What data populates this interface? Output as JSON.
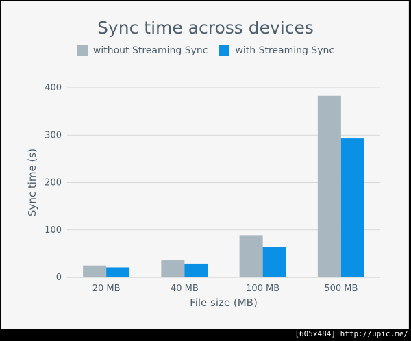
{
  "chart_data": {
    "type": "bar",
    "title": "Sync time across devices",
    "xlabel": "File size (MB)",
    "ylabel": "Sync time (s)",
    "categories": [
      "20 MB",
      "40 MB",
      "100 MB",
      "500 MB"
    ],
    "ylim": [
      0,
      400
    ],
    "yticks": [
      0,
      100,
      200,
      300,
      400
    ],
    "grid": true,
    "legend_position": "top",
    "series": [
      {
        "name": "without Streaming Sync",
        "color": "#a9b7c1",
        "values": [
          25,
          36,
          89,
          383
        ]
      },
      {
        "name": "with Streaming Sync",
        "color": "#0a91e6",
        "values": [
          21,
          29,
          64,
          293
        ]
      }
    ]
  },
  "watermark": "[605x484] http://upic.me/"
}
